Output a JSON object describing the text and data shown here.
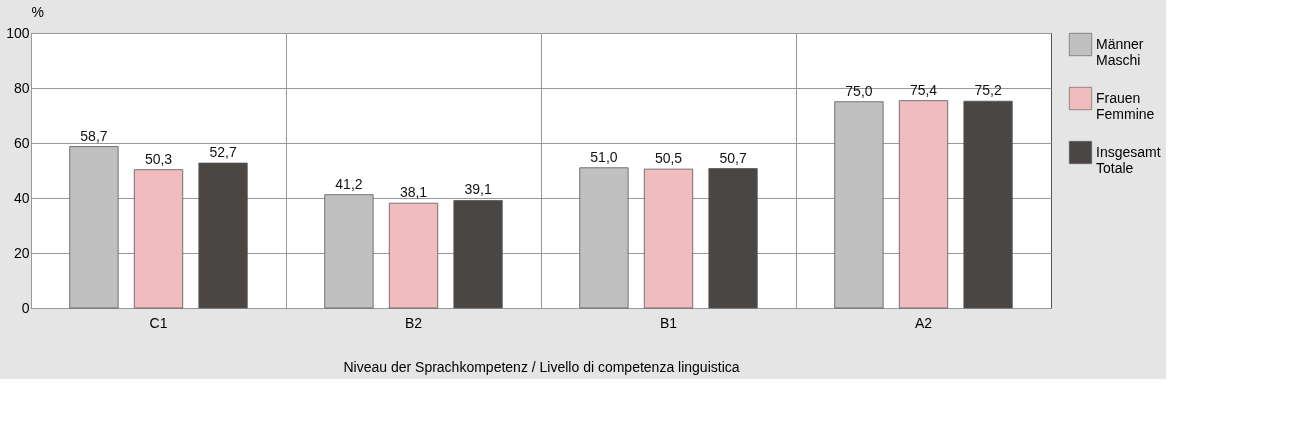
{
  "chart_data": {
    "type": "bar",
    "xlabel": "Niveau der Sprachkompetenz  /  Livello di competenza linguistica",
    "ylabel": "%",
    "categories": [
      "C1",
      "B2",
      "B1",
      "A2"
    ],
    "series": [
      {
        "name": "Männer\nMaschi",
        "color": "#c0c0c0",
        "values": [
          58.7,
          41.2,
          51.0,
          75.0
        ],
        "value_labels": [
          "58,7",
          "41,2",
          "51,0",
          "75,0"
        ]
      },
      {
        "name": "Frauen\nFemmine",
        "color": "#f0bcbf",
        "values": [
          50.3,
          38.1,
          50.5,
          75.4
        ],
        "value_labels": [
          "50,3",
          "38,1",
          "50,5",
          "75,4"
        ]
      },
      {
        "name": "Insgesamt\nTotale",
        "color": "#4a4644",
        "values": [
          52.7,
          39.1,
          50.7,
          75.2
        ],
        "value_labels": [
          "52,7",
          "39,1",
          "50,7",
          "75,2"
        ]
      }
    ],
    "ylim": [
      0,
      100
    ],
    "yticks": [
      0,
      20,
      40,
      60,
      80,
      100
    ],
    "grid": true,
    "legend": "top right"
  }
}
